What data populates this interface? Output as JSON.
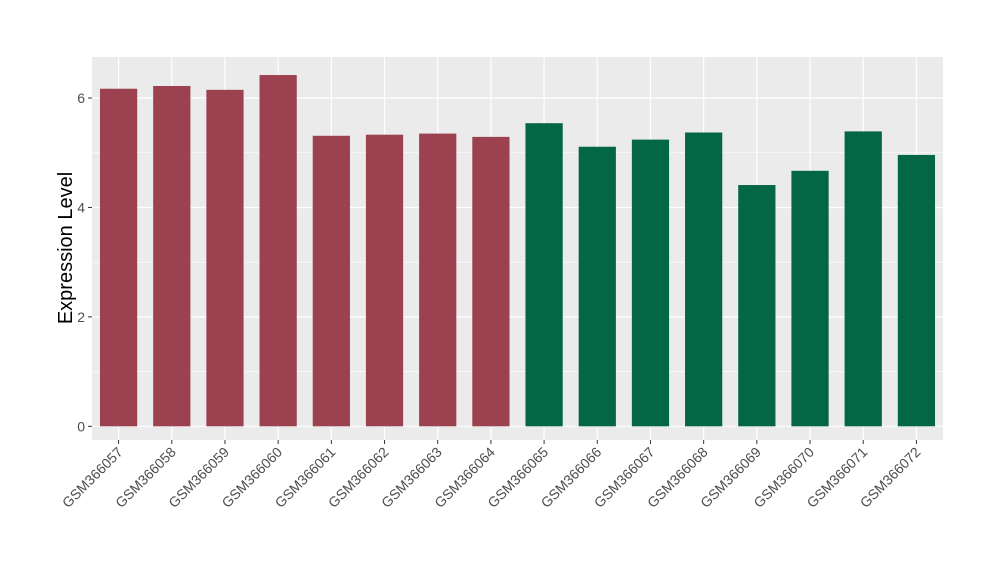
{
  "chart_data": {
    "type": "bar",
    "title": "",
    "xlabel": "",
    "ylabel": "Expression Level",
    "ylim": [
      -0.25,
      6.75
    ],
    "yticks": [
      0,
      2,
      4,
      6
    ],
    "grid": true,
    "categories": [
      "GSM366057",
      "GSM366058",
      "GSM366059",
      "GSM366060",
      "GSM366061",
      "GSM366062",
      "GSM366063",
      "GSM366064",
      "GSM366065",
      "GSM366066",
      "GSM366067",
      "GSM366068",
      "GSM366069",
      "GSM366070",
      "GSM366071",
      "GSM366072"
    ],
    "values": [
      6.17,
      6.22,
      6.15,
      6.42,
      5.31,
      5.33,
      5.35,
      5.29,
      5.54,
      5.11,
      5.24,
      5.37,
      4.41,
      4.67,
      5.39,
      4.96
    ],
    "bar_colors": [
      "#9b4150",
      "#9b4150",
      "#9b4150",
      "#9b4150",
      "#9b4150",
      "#9b4150",
      "#9b4150",
      "#9b4150",
      "#036645",
      "#036645",
      "#036645",
      "#036645",
      "#036645",
      "#036645",
      "#036645",
      "#036645"
    ],
    "panel_background": "#ebebeb",
    "grid_color": "#ffffff"
  }
}
